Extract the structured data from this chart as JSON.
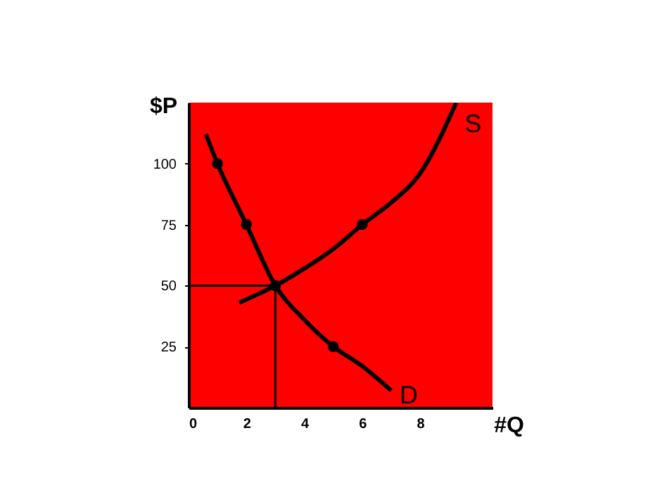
{
  "chart_data": {
    "type": "line",
    "xlabel": "#Q",
    "ylabel": "$P",
    "xlim": [
      0,
      10.5
    ],
    "ylim": [
      0,
      125
    ],
    "xticks": [
      0,
      2,
      4,
      6,
      8
    ],
    "yticks": [
      25,
      50,
      75,
      100
    ],
    "grid": false,
    "line_style": "solid",
    "marker": "none",
    "series": [
      {
        "name": "S",
        "color": "#000000",
        "x": [
          1.75,
          3,
          4,
          5,
          6,
          7,
          8,
          9.25
        ],
        "values": [
          43,
          50,
          57,
          65,
          75,
          84,
          96,
          125
        ]
      },
      {
        "name": "D",
        "color": "#000000",
        "x": [
          0.6,
          1,
          2,
          3,
          4,
          5,
          6,
          7
        ],
        "values": [
          112,
          100,
          75,
          50,
          36,
          25,
          17,
          7
        ]
      },
      {
        "type": "line",
        "color": "#000000",
        "x": [
          0,
          3,
          3
        ],
        "values": [
          50,
          50,
          0
        ]
      },
      {
        "type": "scatter",
        "color": "#000000",
        "marker": "circle",
        "x": [
          1,
          2,
          3,
          5,
          6
        ],
        "values": [
          100,
          75,
          50,
          25,
          75
        ]
      }
    ]
  }
}
